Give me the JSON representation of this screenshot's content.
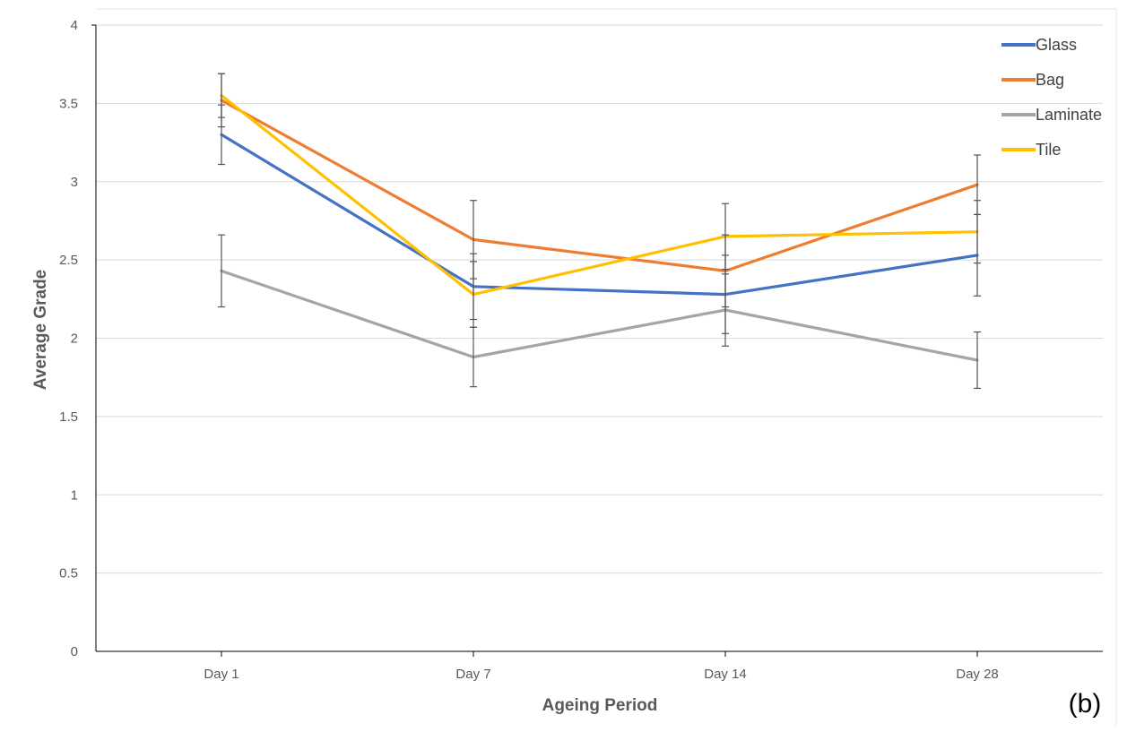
{
  "panel_label": "(b)",
  "chart_data": {
    "type": "line",
    "title": "",
    "xlabel": "Ageing Period",
    "ylabel": "Average Grade",
    "categories": [
      "Day 1",
      "Day 7",
      "Day 14",
      "Day 28"
    ],
    "ylim": [
      0,
      4
    ],
    "yticks": [
      0,
      0.5,
      1,
      1.5,
      2,
      2.5,
      3,
      3.5,
      4
    ],
    "ytick_labels": [
      "0",
      "0.5",
      "1",
      "1.5",
      "2",
      "2.5",
      "3",
      "3.5",
      "4"
    ],
    "grid": "horizontal",
    "legend_position": "top-right",
    "series": [
      {
        "name": "Glass",
        "color": "#4472C4",
        "values": [
          3.3,
          2.33,
          2.28,
          2.53
        ],
        "errors": [
          0.19,
          0.21,
          0.25,
          0.26
        ]
      },
      {
        "name": "Bag",
        "color": "#ED7D31",
        "values": [
          3.52,
          2.63,
          2.43,
          2.98
        ],
        "errors": [
          0.17,
          0.25,
          0.23,
          0.19
        ]
      },
      {
        "name": "Laminate",
        "color": "#A5A5A5",
        "values": [
          2.43,
          1.88,
          2.18,
          1.86
        ],
        "errors": [
          0.23,
          0.19,
          0.23,
          0.18
        ]
      },
      {
        "name": "Tile",
        "color": "#FFC000",
        "values": [
          3.55,
          2.28,
          2.65,
          2.68
        ],
        "errors": [
          0.14,
          0.21,
          0.21,
          0.2
        ]
      }
    ]
  }
}
